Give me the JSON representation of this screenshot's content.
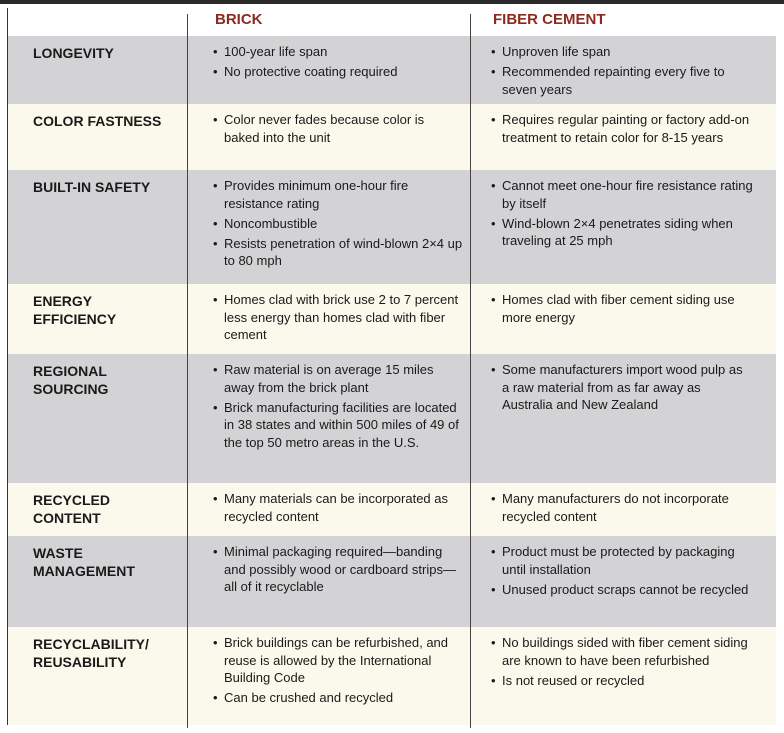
{
  "header": {
    "columns": [
      "BRICK",
      "FIBER CEMENT"
    ]
  },
  "rows": [
    {
      "label": [
        "LONGEVITY"
      ],
      "brick": [
        "100-year life span",
        "No protective coating required"
      ],
      "fiber_cement": [
        "Unproven life span",
        "Recommended repainting every five to seven years"
      ]
    },
    {
      "label": [
        "COLOR FASTNESS"
      ],
      "brick": [
        "Color never fades because color is baked into the unit"
      ],
      "fiber_cement": [
        "Requires regular painting or factory add-on treatment to retain color for 8-15 years"
      ]
    },
    {
      "label": [
        "BUILT-IN SAFETY"
      ],
      "brick": [
        "Provides minimum one-hour fire resistance rating",
        "Noncombustible",
        "Resists penetration of wind-blown 2×4 up to 80 mph"
      ],
      "fiber_cement": [
        "Cannot meet one-hour fire resistance rating by itself",
        "Wind-blown 2×4 penetrates siding when traveling at 25 mph"
      ]
    },
    {
      "label": [
        "ENERGY",
        "EFFICIENCY"
      ],
      "brick": [
        "Homes clad with brick use 2 to 7 percent less energy than homes clad with fiber cement"
      ],
      "fiber_cement": [
        "Homes clad with fiber cement siding use more energy"
      ]
    },
    {
      "label": [
        "REGIONAL",
        "SOURCING"
      ],
      "brick": [
        "Raw material is on average 15 miles away from the brick plant",
        "Brick manufacturing facilities are located in 38 states and within 500 miles of 49 of the top 50 metro areas in the U.S."
      ],
      "fiber_cement": [
        "Some manufacturers import wood pulp as a raw material from as far away as Australia and New Zealand"
      ]
    },
    {
      "label": [
        "RECYCLED",
        "CONTENT"
      ],
      "brick": [
        "Many materials can be incorporated as recycled content"
      ],
      "fiber_cement": [
        "Many manufacturers do not incorporate recycled content"
      ]
    },
    {
      "label": [
        "WASTE",
        "MANAGEMENT"
      ],
      "brick": [
        "Minimal packaging required—banding and possibly wood or cardboard strips—all of it recyclable"
      ],
      "fiber_cement": [
        "Product must be protected by packaging until installation",
        "Unused product scraps cannot be recycled"
      ]
    },
    {
      "label": [
        "RECYCLABILITY/",
        "REUSABILITY"
      ],
      "brick": [
        "Brick buildings can be refurbished, and reuse is allowed by the International Building Code",
        "Can be crushed and recycled"
      ],
      "fiber_cement": [
        "No buildings sided with fiber cement siding are known to have been refurbished",
        "Is not reused or recycled"
      ]
    }
  ]
}
